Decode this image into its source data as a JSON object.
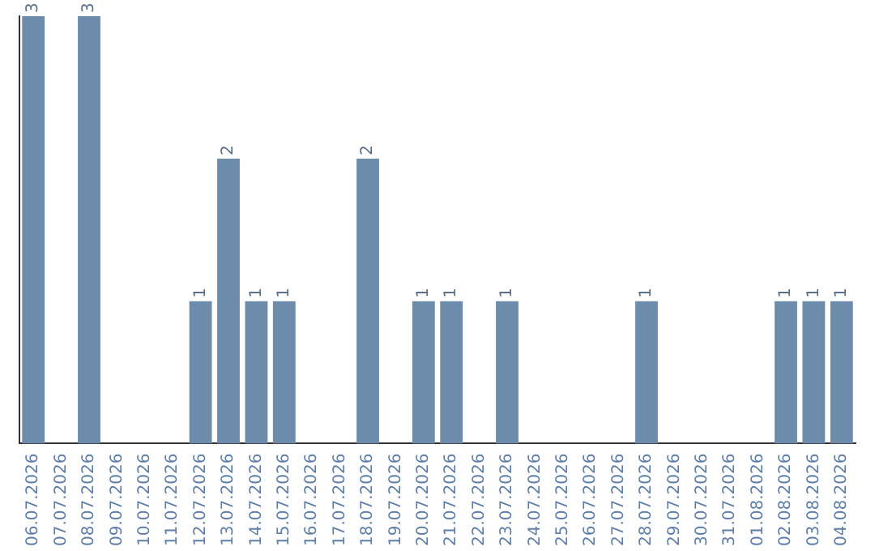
{
  "chart_data": {
    "type": "bar",
    "categories": [
      "06.07.2026",
      "07.07.2026",
      "08.07.2026",
      "09.07.2026",
      "10.07.2026",
      "11.07.2026",
      "12.07.2026",
      "13.07.2026",
      "14.07.2026",
      "15.07.2026",
      "16.07.2026",
      "17.07.2026",
      "18.07.2026",
      "19.07.2026",
      "20.07.2026",
      "21.07.2026",
      "22.07.2026",
      "23.07.2026",
      "24.07.2026",
      "25.07.2026",
      "26.07.2026",
      "27.07.2026",
      "28.07.2026",
      "29.07.2026",
      "30.07.2026",
      "31.07.2026",
      "01.08.2026",
      "02.08.2026",
      "03.08.2026",
      "04.08.2026"
    ],
    "values": [
      3,
      0,
      3,
      0,
      0,
      0,
      1,
      2,
      1,
      1,
      0,
      0,
      2,
      0,
      1,
      1,
      0,
      1,
      0,
      0,
      0,
      0,
      1,
      0,
      0,
      0,
      0,
      1,
      1,
      1
    ],
    "value_labels": [
      "3",
      null,
      "3",
      null,
      null,
      null,
      "1",
      "2",
      "1",
      "1",
      null,
      null,
      "2",
      null,
      "1",
      "1",
      null,
      "1",
      null,
      null,
      null,
      null,
      "1",
      null,
      null,
      null,
      null,
      "1",
      "1",
      "1"
    ],
    "color": "#6d8cac",
    "grid": false,
    "legend": false
  }
}
